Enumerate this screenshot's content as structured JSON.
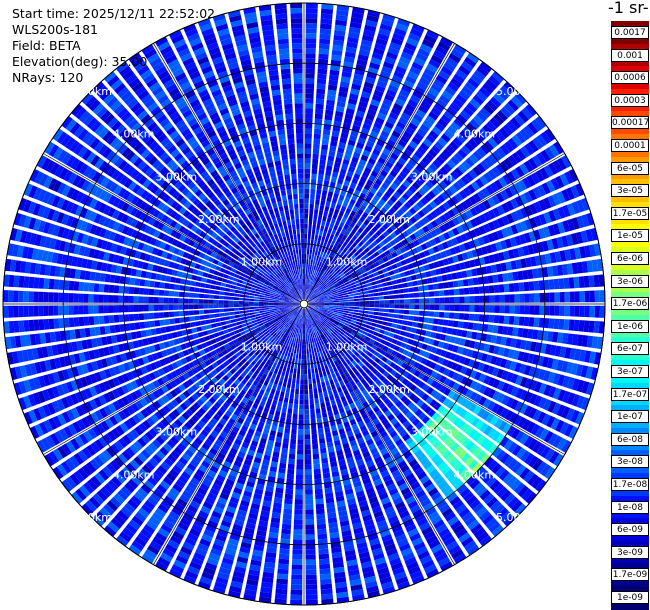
{
  "header": {
    "start_time": "Start time: 2025/12/11 22:52:02",
    "instrument": "WLS200s-181",
    "field": "Field: BETA",
    "elevation": "Elevation(deg): 35.00",
    "nrays": "NRays: 120"
  },
  "colorbar": {
    "unit_label": "-1 sr-",
    "labels": [
      "0.0017",
      "0.001",
      "0.0006",
      "0.0003",
      "0.00017",
      "0.0001",
      "6e-05",
      "3e-05",
      "1.7e-05",
      "1e-05",
      "6e-06",
      "3e-06",
      "1.7e-06",
      "1e-06",
      "6e-07",
      "3e-07",
      "1.7e-07",
      "1e-07",
      "6e-08",
      "3e-08",
      "1.7e-08",
      "1e-08",
      "6e-09",
      "3e-09",
      "1.7e-09",
      "1e-09"
    ],
    "colors": [
      "#800000",
      "#b00000",
      "#dd0000",
      "#ff2000",
      "#ff4a00",
      "#ff7400",
      "#ff9a00",
      "#ffbe00",
      "#ffe000",
      "#ffff00",
      "#d8ff20",
      "#a8ff50",
      "#78ff80",
      "#50ffa8",
      "#28ffd0",
      "#00f8f0",
      "#00d8ff",
      "#00b0ff",
      "#0088ff",
      "#0060ff",
      "#0038ff",
      "#0010ff",
      "#0000e0",
      "#0000b8",
      "#000090",
      "#000070"
    ]
  },
  "chart_data": {
    "type": "ppi-polar",
    "field": "BETA",
    "scale": "log",
    "rays": 120,
    "max_range_km": 5.0,
    "range_rings_km": [
      1.0,
      2.0,
      3.0,
      4.0,
      5.0
    ],
    "range_labels": [
      "1.00km",
      "2.00km",
      "3.00km",
      "4.00km",
      "5.00km"
    ],
    "dominant_value": 1e-08,
    "feature": {
      "description": "enhanced backscatter arc",
      "azimuth_deg_from": 120,
      "azimuth_deg_to": 145,
      "range_km_from": 2.8,
      "range_km_to": 4.0,
      "peak_value": 3e-06
    }
  }
}
